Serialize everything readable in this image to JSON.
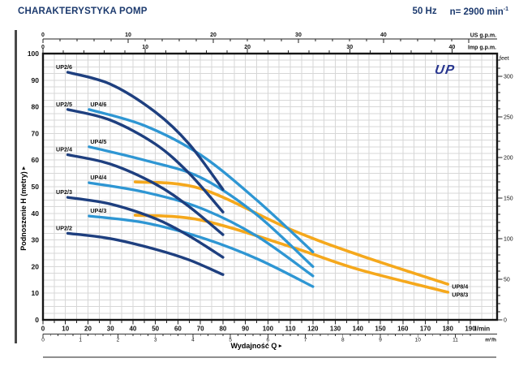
{
  "header": {
    "title": "CHARAKTERYSTYKA POMP",
    "frequency": "50 Hz",
    "speed_value": "n= 2900 min",
    "speed_sup": "-1"
  },
  "logo": {
    "text": "UP"
  },
  "axis_titles": {
    "y": "Podnoszenie H (metry)",
    "x": "Wydajność Q"
  },
  "icons": {
    "right_arrow": "▸"
  },
  "colors": {
    "up2": "#1e3f7f",
    "up4": "#2e96d3",
    "up8": "#f5a81c",
    "grid": "#d7d7d7",
    "frame": "#161616",
    "axis": "#222222",
    "header_text": "#1c3a6e",
    "logo_text": "#28368f"
  },
  "chart_data": {
    "type": "line",
    "title": "CHARAKTERYSTYKA POMP",
    "grid": {
      "x_step_lmin": 5,
      "y_step_m": 2.5
    },
    "x_primary": {
      "label": "l/min",
      "max": 190,
      "tick_step": 10,
      "minor_step": 5,
      "ticks": [
        0,
        10,
        20,
        30,
        40,
        50,
        60,
        70,
        80,
        90,
        100,
        110,
        120,
        130,
        140,
        150,
        160,
        170,
        180,
        190
      ]
    },
    "x_m3h": {
      "label": "m³/h",
      "lmin_per_unit": 16.667,
      "minor_step": 0.2,
      "ticks": [
        0,
        1,
        2,
        3,
        4,
        5,
        6,
        7,
        8,
        9,
        10,
        11
      ]
    },
    "x_us_gpm": {
      "label": "US g.p.m.",
      "lmin_per_unit": 3.785,
      "minor_step": 2,
      "ticks": [
        0,
        10,
        20,
        30,
        40
      ]
    },
    "x_imp_gpm": {
      "label": "Imp g.p.m.",
      "lmin_per_unit": 4.546,
      "minor_step": 2,
      "ticks": [
        0,
        10,
        20,
        30,
        40
      ]
    },
    "y_primary": {
      "label": "Podnoszenie H (metry)",
      "max": 100,
      "tick_step": 10,
      "ticks": [
        0,
        10,
        20,
        30,
        40,
        50,
        60,
        70,
        80,
        90,
        100
      ]
    },
    "y_feet": {
      "label": "feet",
      "meters_per_unit": 0.3048,
      "minor_step": 10,
      "ticks": [
        0,
        50,
        100,
        150,
        200,
        250,
        300
      ]
    },
    "series": [
      {
        "name": "UP2/6",
        "family": "up2",
        "label_anchor": "start-left",
        "points": [
          [
            11,
            93
          ],
          [
            30,
            88.5
          ],
          [
            50,
            78
          ],
          [
            65,
            66
          ],
          [
            80,
            49
          ]
        ]
      },
      {
        "name": "UP2/5",
        "family": "up2",
        "label_anchor": "start-left",
        "points": [
          [
            11,
            79
          ],
          [
            30,
            75
          ],
          [
            50,
            66
          ],
          [
            65,
            55
          ],
          [
            80,
            40.5
          ]
        ]
      },
      {
        "name": "UP2/4",
        "family": "up2",
        "label_anchor": "start-left",
        "points": [
          [
            11,
            62
          ],
          [
            30,
            58.5
          ],
          [
            50,
            51
          ],
          [
            65,
            42.5
          ],
          [
            80,
            32
          ]
        ]
      },
      {
        "name": "UP2/3",
        "family": "up2",
        "label_anchor": "start-left",
        "points": [
          [
            11,
            46
          ],
          [
            30,
            43.5
          ],
          [
            50,
            38
          ],
          [
            65,
            31.5
          ],
          [
            80,
            23.5
          ]
        ]
      },
      {
        "name": "UP2/2",
        "family": "up2",
        "label_anchor": "start-left",
        "points": [
          [
            11,
            32.5
          ],
          [
            30,
            30.5
          ],
          [
            50,
            26.5
          ],
          [
            65,
            22.5
          ],
          [
            80,
            17
          ]
        ]
      },
      {
        "name": "UP4/6",
        "family": "up4",
        "label_anchor": "start-right",
        "points": [
          [
            20.5,
            79
          ],
          [
            45,
            73
          ],
          [
            70,
            62
          ],
          [
            95,
            45
          ],
          [
            120,
            25.5
          ]
        ]
      },
      {
        "name": "UP4/5",
        "family": "up4",
        "label_anchor": "start-right",
        "points": [
          [
            20.5,
            65
          ],
          [
            45,
            60
          ],
          [
            70,
            53.5
          ],
          [
            95,
            39.5
          ],
          [
            120,
            20
          ]
        ]
      },
      {
        "name": "UP4/4",
        "family": "up4",
        "label_anchor": "start-right",
        "points": [
          [
            20.5,
            51.5
          ],
          [
            45,
            48
          ],
          [
            70,
            42
          ],
          [
            95,
            31.5
          ],
          [
            120,
            16.5
          ]
        ]
      },
      {
        "name": "UP4/3",
        "family": "up4",
        "label_anchor": "start-right",
        "points": [
          [
            20.5,
            39
          ],
          [
            45,
            36.5
          ],
          [
            70,
            31
          ],
          [
            95,
            23
          ],
          [
            120,
            12.5
          ]
        ]
      },
      {
        "name": "UP8/4",
        "family": "up8",
        "label_anchor": "end",
        "points": [
          [
            41,
            51.8
          ],
          [
            70,
            49.3
          ],
          [
            110,
            34
          ],
          [
            140,
            24.5
          ],
          [
            180,
            13.4
          ]
        ]
      },
      {
        "name": "UP8/3",
        "family": "up8",
        "label_anchor": "end",
        "points": [
          [
            41,
            39.3
          ],
          [
            70,
            37.5
          ],
          [
            110,
            27.5
          ],
          [
            140,
            19
          ],
          [
            180,
            10.4
          ]
        ]
      }
    ]
  }
}
